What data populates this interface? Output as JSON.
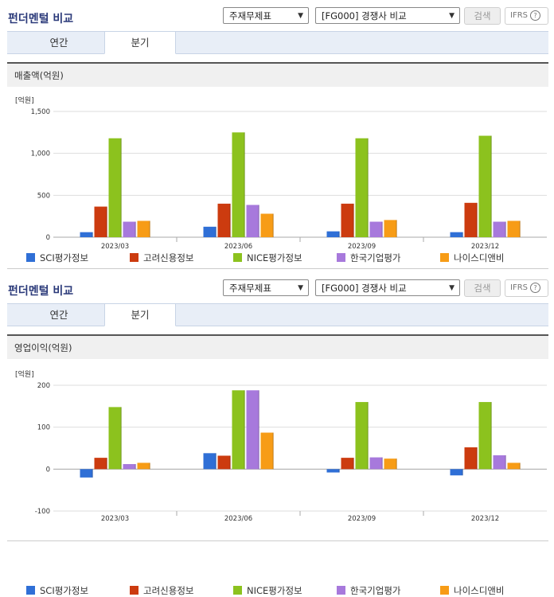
{
  "panels": [
    {
      "title": "펀더멘털 비교",
      "select_item": "주재무제표",
      "select_peer": "[FG000] 경쟁사 비교",
      "search_label": "검색",
      "ifrs_label": "IFRS",
      "help_glyph": "?",
      "tabs": [
        "연간",
        "분기"
      ],
      "active_tab": "분기"
    },
    {
      "title": "펀더멘털 비교",
      "select_item": "주재무제표",
      "select_peer": "[FG000] 경쟁사 비교",
      "search_label": "검색",
      "ifrs_label": "IFRS",
      "help_glyph": "?",
      "tabs": [
        "연간",
        "분기"
      ],
      "active_tab": "분기"
    }
  ],
  "chart_data": [
    {
      "type": "bar",
      "title": "매출액(억원)",
      "unit_label": "[억원]",
      "categories": [
        "2023/03",
        "2023/06",
        "2023/09",
        "2023/12"
      ],
      "ylim": [
        0,
        1500
      ],
      "yticks": [
        0,
        500,
        1000,
        1500
      ],
      "ytick_labels": [
        "0",
        "500",
        "1,000",
        "1,500"
      ],
      "series": [
        {
          "name": "SCI평가정보",
          "color": "#2f6fd6",
          "values": [
            60,
            125,
            70,
            60
          ]
        },
        {
          "name": "고려신용정보",
          "color": "#cc3b0f",
          "values": [
            365,
            400,
            400,
            410
          ]
        },
        {
          "name": "NICE평가정보",
          "color": "#8cc21e",
          "values": [
            1180,
            1250,
            1180,
            1210
          ]
        },
        {
          "name": "한국기업평가",
          "color": "#a779dc",
          "values": [
            185,
            385,
            185,
            185
          ]
        },
        {
          "name": "나이스디앤비",
          "color": "#f79c16",
          "values": [
            195,
            280,
            205,
            195
          ]
        }
      ]
    },
    {
      "type": "bar",
      "title": "영업이익(억원)",
      "unit_label": "[억원]",
      "categories": [
        "2023/03",
        "2023/06",
        "2023/09",
        "2023/12"
      ],
      "ylim": [
        -100,
        200
      ],
      "yticks": [
        -100,
        0,
        100,
        200
      ],
      "ytick_labels": [
        "-100",
        "0",
        "100",
        "200"
      ],
      "series": [
        {
          "name": "SCI평가정보",
          "color": "#2f6fd6",
          "values": [
            -20,
            38,
            -8,
            -15
          ]
        },
        {
          "name": "고려신용정보",
          "color": "#cc3b0f",
          "values": [
            27,
            32,
            27,
            52
          ]
        },
        {
          "name": "NICE평가정보",
          "color": "#8cc21e",
          "values": [
            148,
            188,
            160,
            160
          ]
        },
        {
          "name": "한국기업평가",
          "color": "#a779dc",
          "values": [
            12,
            188,
            28,
            33
          ]
        },
        {
          "name": "나이스디앤비",
          "color": "#f79c16",
          "values": [
            15,
            87,
            25,
            15
          ]
        }
      ]
    }
  ]
}
